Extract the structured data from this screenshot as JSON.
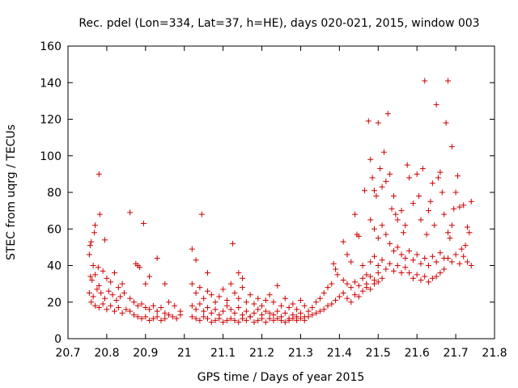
{
  "chart_data": {
    "type": "scatter",
    "title": "Rec. pdel (Lon=334, Lat=37, h=HE), days 020-021, 2015, window 003",
    "xlabel": "GPS time / Days of year 2015",
    "ylabel": "STEC from uqrg / TECUs",
    "xlim": [
      20.7,
      21.8
    ],
    "ylim": [
      0,
      160
    ],
    "grid": false,
    "marker": "plus",
    "color": "#cc0000",
    "x_ticks": [
      "20.7",
      "20.8",
      "20.9",
      "21",
      "21.1",
      "21.2",
      "21.3",
      "21.4",
      "21.5",
      "21.6",
      "21.7",
      "21.8"
    ],
    "y_ticks": [
      "0",
      "20",
      "40",
      "60",
      "80",
      "100",
      "120",
      "140",
      "160"
    ],
    "series": [
      {
        "name": "STEC",
        "points": [
          [
            20.755,
            46
          ],
          [
            20.757,
            51
          ],
          [
            20.76,
            53
          ],
          [
            20.765,
            40
          ],
          [
            20.768,
            58
          ],
          [
            20.77,
            62
          ],
          [
            20.778,
            39
          ],
          [
            20.78,
            90
          ],
          [
            20.782,
            68
          ],
          [
            20.795,
            54
          ],
          [
            20.758,
            34
          ],
          [
            20.762,
            32
          ],
          [
            20.77,
            35
          ],
          [
            20.78,
            29
          ],
          [
            20.79,
            37
          ],
          [
            20.8,
            33
          ],
          [
            20.81,
            31
          ],
          [
            20.82,
            36
          ],
          [
            20.83,
            28
          ],
          [
            20.84,
            30
          ],
          [
            20.755,
            25
          ],
          [
            20.765,
            23
          ],
          [
            20.775,
            27
          ],
          [
            20.785,
            25
          ],
          [
            20.795,
            22
          ],
          [
            20.805,
            26
          ],
          [
            20.815,
            24
          ],
          [
            20.825,
            21
          ],
          [
            20.835,
            23
          ],
          [
            20.845,
            25
          ],
          [
            20.76,
            20
          ],
          [
            20.77,
            18
          ],
          [
            20.78,
            17
          ],
          [
            20.79,
            19
          ],
          [
            20.8,
            16
          ],
          [
            20.81,
            18
          ],
          [
            20.82,
            15
          ],
          [
            20.83,
            17
          ],
          [
            20.84,
            14
          ],
          [
            20.85,
            16
          ],
          [
            20.86,
            69
          ],
          [
            20.875,
            41
          ],
          [
            20.88,
            40
          ],
          [
            20.885,
            39
          ],
          [
            20.895,
            63
          ],
          [
            20.9,
            30
          ],
          [
            20.91,
            34
          ],
          [
            20.93,
            44
          ],
          [
            20.95,
            30
          ],
          [
            20.86,
            22
          ],
          [
            20.87,
            20
          ],
          [
            20.88,
            18
          ],
          [
            20.89,
            19
          ],
          [
            20.9,
            17
          ],
          [
            20.91,
            16
          ],
          [
            20.92,
            18
          ],
          [
            20.93,
            15
          ],
          [
            20.94,
            17
          ],
          [
            20.95,
            14
          ],
          [
            20.86,
            15
          ],
          [
            20.87,
            13
          ],
          [
            20.88,
            12
          ],
          [
            20.89,
            11
          ],
          [
            20.9,
            12
          ],
          [
            20.91,
            10
          ],
          [
            20.92,
            11
          ],
          [
            20.93,
            12
          ],
          [
            20.94,
            10
          ],
          [
            20.95,
            11
          ],
          [
            20.96,
            13
          ],
          [
            20.97,
            12
          ],
          [
            20.98,
            11
          ],
          [
            20.99,
            13
          ],
          [
            20.96,
            20
          ],
          [
            20.975,
            18
          ],
          [
            20.99,
            15
          ],
          [
            21.02,
            49
          ],
          [
            21.03,
            43
          ],
          [
            21.045,
            68
          ],
          [
            21.06,
            36
          ],
          [
            21.125,
            52
          ],
          [
            21.14,
            36
          ],
          [
            21.15,
            33
          ],
          [
            21.02,
            30
          ],
          [
            21.03,
            25
          ],
          [
            21.04,
            28
          ],
          [
            21.05,
            22
          ],
          [
            21.06,
            26
          ],
          [
            21.07,
            24
          ],
          [
            21.08,
            20
          ],
          [
            21.09,
            23
          ],
          [
            21.1,
            27
          ],
          [
            21.11,
            21
          ],
          [
            21.02,
            18
          ],
          [
            21.03,
            16
          ],
          [
            21.04,
            19
          ],
          [
            21.05,
            15
          ],
          [
            21.06,
            17
          ],
          [
            21.07,
            14
          ],
          [
            21.08,
            16
          ],
          [
            21.09,
            13
          ],
          [
            21.1,
            15
          ],
          [
            21.11,
            18
          ],
          [
            21.02,
            12
          ],
          [
            21.03,
            11
          ],
          [
            21.04,
            10
          ],
          [
            21.05,
            12
          ],
          [
            21.06,
            11
          ],
          [
            21.07,
            9
          ],
          [
            21.08,
            10
          ],
          [
            21.09,
            11
          ],
          [
            21.1,
            9
          ],
          [
            21.11,
            10
          ],
          [
            21.12,
            30
          ],
          [
            21.13,
            25
          ],
          [
            21.14,
            22
          ],
          [
            21.15,
            28
          ],
          [
            21.16,
            20
          ],
          [
            21.17,
            24
          ],
          [
            21.18,
            19
          ],
          [
            21.19,
            22
          ],
          [
            21.2,
            18
          ],
          [
            21.21,
            21
          ],
          [
            21.12,
            16
          ],
          [
            21.13,
            14
          ],
          [
            21.14,
            17
          ],
          [
            21.15,
            13
          ],
          [
            21.16,
            15
          ],
          [
            21.17,
            12
          ],
          [
            21.18,
            14
          ],
          [
            21.19,
            16
          ],
          [
            21.2,
            13
          ],
          [
            21.21,
            15
          ],
          [
            21.12,
            11
          ],
          [
            21.13,
            10
          ],
          [
            21.14,
            9
          ],
          [
            21.15,
            11
          ],
          [
            21.16,
            10
          ],
          [
            21.17,
            12
          ],
          [
            21.18,
            9
          ],
          [
            21.19,
            10
          ],
          [
            21.2,
            11
          ],
          [
            21.21,
            9
          ],
          [
            21.22,
            24
          ],
          [
            21.23,
            20
          ],
          [
            21.24,
            29
          ],
          [
            21.25,
            18
          ],
          [
            21.26,
            22
          ],
          [
            21.27,
            17
          ],
          [
            21.28,
            19
          ],
          [
            21.29,
            16
          ],
          [
            21.3,
            21
          ],
          [
            21.31,
            18
          ],
          [
            21.22,
            14
          ],
          [
            21.23,
            13
          ],
          [
            21.24,
            15
          ],
          [
            21.25,
            12
          ],
          [
            21.26,
            14
          ],
          [
            21.27,
            11
          ],
          [
            21.28,
            13
          ],
          [
            21.29,
            12
          ],
          [
            21.3,
            14
          ],
          [
            21.31,
            12
          ],
          [
            21.22,
            11
          ],
          [
            21.23,
            10
          ],
          [
            21.24,
            11
          ],
          [
            21.25,
            10
          ],
          [
            21.26,
            9
          ],
          [
            21.27,
            10
          ],
          [
            21.28,
            11
          ],
          [
            21.29,
            10
          ],
          [
            21.3,
            11
          ],
          [
            21.31,
            10
          ],
          [
            21.32,
            15
          ],
          [
            21.33,
            17
          ],
          [
            21.34,
            20
          ],
          [
            21.35,
            22
          ],
          [
            21.36,
            25
          ],
          [
            21.37,
            28
          ],
          [
            21.38,
            30
          ],
          [
            21.385,
            41
          ],
          [
            21.39,
            38
          ],
          [
            21.395,
            35
          ],
          [
            21.32,
            12
          ],
          [
            21.33,
            13
          ],
          [
            21.34,
            14
          ],
          [
            21.35,
            15
          ],
          [
            21.36,
            16
          ],
          [
            21.37,
            18
          ],
          [
            21.38,
            19
          ],
          [
            21.39,
            21
          ],
          [
            21.4,
            23
          ],
          [
            21.41,
            25
          ],
          [
            21.41,
            53
          ],
          [
            21.42,
            46
          ],
          [
            21.43,
            42
          ],
          [
            21.44,
            68
          ],
          [
            21.445,
            57
          ],
          [
            21.45,
            56
          ],
          [
            21.46,
            40
          ],
          [
            21.465,
            81
          ],
          [
            21.47,
            35
          ],
          [
            21.41,
            32
          ],
          [
            21.42,
            30
          ],
          [
            21.43,
            28
          ],
          [
            21.44,
            31
          ],
          [
            21.45,
            29
          ],
          [
            21.46,
            33
          ],
          [
            21.47,
            30
          ],
          [
            21.48,
            34
          ],
          [
            21.49,
            32
          ],
          [
            21.5,
            36
          ],
          [
            21.42,
            22
          ],
          [
            21.43,
            20
          ],
          [
            21.44,
            24
          ],
          [
            21.45,
            23
          ],
          [
            21.46,
            26
          ],
          [
            21.47,
            28
          ],
          [
            21.48,
            27
          ],
          [
            21.49,
            30
          ],
          [
            21.5,
            31
          ],
          [
            21.51,
            33
          ],
          [
            21.475,
            119
          ],
          [
            21.48,
            98
          ],
          [
            21.485,
            88
          ],
          [
            21.49,
            81
          ],
          [
            21.495,
            78
          ],
          [
            21.5,
            118
          ],
          [
            21.505,
            93
          ],
          [
            21.51,
            83
          ],
          [
            21.515,
            102
          ],
          [
            21.52,
            86
          ],
          [
            21.525,
            123
          ],
          [
            21.53,
            90
          ],
          [
            21.535,
            71
          ],
          [
            21.54,
            78
          ],
          [
            21.545,
            68
          ],
          [
            21.55,
            65
          ],
          [
            21.56,
            70
          ],
          [
            21.565,
            58
          ],
          [
            21.57,
            62
          ],
          [
            21.575,
            95
          ],
          [
            21.48,
            65
          ],
          [
            21.49,
            60
          ],
          [
            21.5,
            55
          ],
          [
            21.51,
            62
          ],
          [
            21.52,
            57
          ],
          [
            21.53,
            52
          ],
          [
            21.54,
            48
          ],
          [
            21.55,
            50
          ],
          [
            21.56,
            46
          ],
          [
            21.57,
            44
          ],
          [
            21.48,
            42
          ],
          [
            21.49,
            45
          ],
          [
            21.5,
            40
          ],
          [
            21.51,
            43
          ],
          [
            21.52,
            38
          ],
          [
            21.53,
            41
          ],
          [
            21.54,
            37
          ],
          [
            21.55,
            40
          ],
          [
            21.56,
            36
          ],
          [
            21.57,
            39
          ],
          [
            21.58,
            88
          ],
          [
            21.59,
            74
          ],
          [
            21.6,
            90
          ],
          [
            21.605,
            78
          ],
          [
            21.61,
            65
          ],
          [
            21.615,
            93
          ],
          [
            21.62,
            141
          ],
          [
            21.625,
            57
          ],
          [
            21.63,
            70
          ],
          [
            21.635,
            75
          ],
          [
            21.64,
            85
          ],
          [
            21.645,
            62
          ],
          [
            21.65,
            128
          ],
          [
            21.655,
            88
          ],
          [
            21.66,
            91
          ],
          [
            21.665,
            80
          ],
          [
            21.67,
            68
          ],
          [
            21.675,
            118
          ],
          [
            21.68,
            141
          ],
          [
            21.69,
            105
          ],
          [
            21.58,
            48
          ],
          [
            21.59,
            43
          ],
          [
            21.6,
            46
          ],
          [
            21.61,
            41
          ],
          [
            21.62,
            44
          ],
          [
            21.63,
            40
          ],
          [
            21.64,
            45
          ],
          [
            21.65,
            42
          ],
          [
            21.66,
            47
          ],
          [
            21.67,
            44
          ],
          [
            21.58,
            36
          ],
          [
            21.59,
            33
          ],
          [
            21.6,
            35
          ],
          [
            21.61,
            32
          ],
          [
            21.62,
            34
          ],
          [
            21.63,
            31
          ],
          [
            21.64,
            33
          ],
          [
            21.65,
            34
          ],
          [
            21.66,
            36
          ],
          [
            21.67,
            38
          ],
          [
            21.68,
            58
          ],
          [
            21.685,
            55
          ],
          [
            21.69,
            62
          ],
          [
            21.695,
            71
          ],
          [
            21.7,
            80
          ],
          [
            21.705,
            89
          ],
          [
            21.71,
            72
          ],
          [
            21.72,
            73
          ],
          [
            21.73,
            61
          ],
          [
            21.74,
            75
          ],
          [
            21.68,
            44
          ],
          [
            21.69,
            42
          ],
          [
            21.7,
            46
          ],
          [
            21.71,
            41
          ],
          [
            21.72,
            45
          ],
          [
            21.73,
            42
          ],
          [
            21.74,
            40
          ],
          [
            21.735,
            58
          ],
          [
            21.725,
            51
          ],
          [
            21.715,
            49
          ]
        ]
      }
    ]
  }
}
